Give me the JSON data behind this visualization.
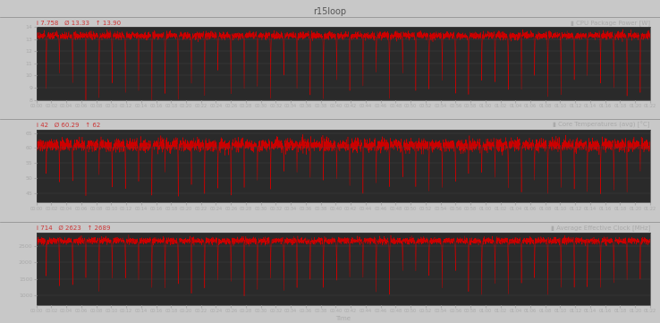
{
  "title": "r15loop",
  "fig_bg": "#c8c8c8",
  "plot_bg": "#2a2a2a",
  "text_color": "#aaaaaa",
  "line_color": "#cc0000",
  "grid_color": "#484848",
  "title_color": "#555555",
  "stats_color": "#cc3333",
  "header_bg": "#c8c8c8",
  "panels": [
    {
      "label": "CPU Package Power [W]",
      "stats_i": "7.758",
      "stats_avg": "13.33",
      "stats_max": "13.90",
      "ylim": [
        8,
        14
      ],
      "yticks": [
        8,
        9,
        10,
        11,
        12,
        13,
        14
      ],
      "base": 13.3,
      "noise": 0.15,
      "spike_depth": 5.5,
      "n_spikes": 46
    },
    {
      "label": "Core Temperatures (avg) [°C]",
      "stats_i": "42",
      "stats_avg": "60.29",
      "stats_max": "62",
      "ylim": [
        42,
        66
      ],
      "yticks": [
        45,
        50,
        55,
        60,
        65
      ],
      "base": 61.0,
      "noise": 1.0,
      "spike_depth": 17.0,
      "n_spikes": 46
    },
    {
      "label": "Average Effective Clock [MHz]",
      "stats_i": "714",
      "stats_avg": "2623",
      "stats_max": "2689",
      "ylim": [
        700,
        2900
      ],
      "yticks": [
        1000,
        1500,
        2000,
        2500
      ],
      "base": 2650.0,
      "noise": 50.0,
      "spike_depth": 1700.0,
      "n_spikes": 46
    }
  ],
  "n_points": 4920,
  "time_max_min": 82,
  "xlabel": "Time",
  "x_tick_step_min": 2
}
